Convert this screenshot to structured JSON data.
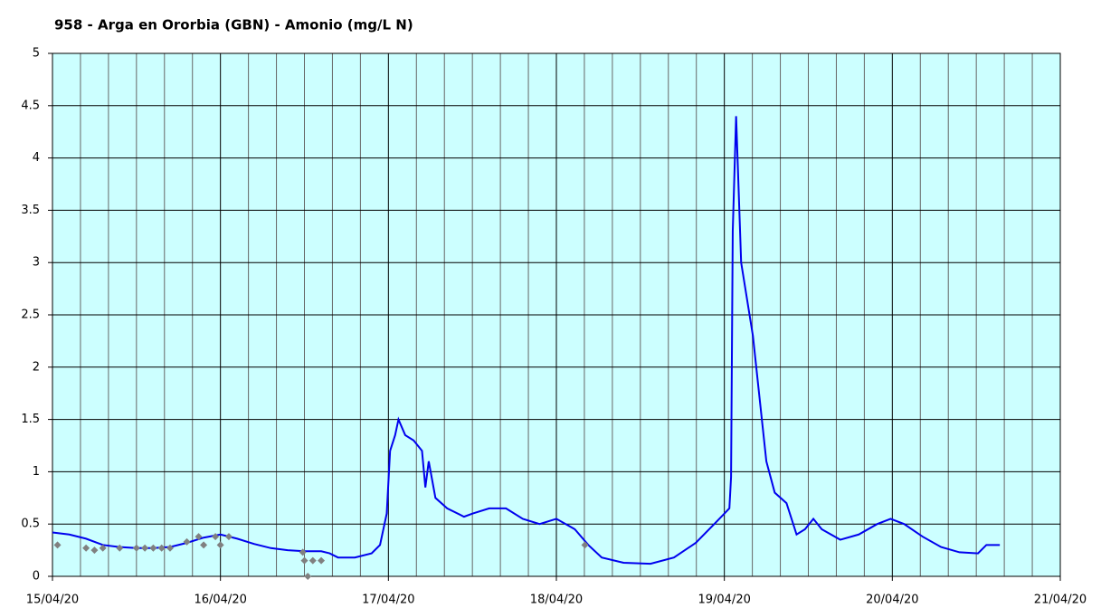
{
  "chart_data": {
    "type": "line",
    "title": "958 - Arga en Ororbia (GBN) - Amonio (mg/L N)",
    "xlim": [
      0,
      6
    ],
    "ylim": [
      0,
      5
    ],
    "xticks": [
      {
        "value": 0,
        "label": "15/04/20"
      },
      {
        "value": 1,
        "label": "16/04/20"
      },
      {
        "value": 2,
        "label": "17/04/20"
      },
      {
        "value": 3,
        "label": "18/04/20"
      },
      {
        "value": 4,
        "label": "19/04/20"
      },
      {
        "value": 5,
        "label": "20/04/20"
      },
      {
        "value": 6,
        "label": "21/04/20"
      }
    ],
    "yticks": [
      0,
      0.5,
      1,
      1.5,
      2,
      2.5,
      3,
      3.5,
      4,
      4.5,
      5
    ],
    "grid": true,
    "background": "#ccffff",
    "series": [
      {
        "color": "#0000ee",
        "kind": "line",
        "x": [
          0,
          0.1,
          0.2,
          0.3,
          0.4,
          0.5,
          0.6,
          0.7,
          0.8,
          0.9,
          1.0,
          1.1,
          1.2,
          1.3,
          1.4,
          1.5,
          1.6,
          1.65,
          1.7,
          1.8,
          1.9,
          1.95,
          1.99,
          2.01,
          2.04,
          2.06,
          2.1,
          2.15,
          2.2,
          2.22,
          2.24,
          2.28,
          2.35,
          2.45,
          2.5,
          2.6,
          2.7,
          2.8,
          2.9,
          3.0,
          3.11,
          3.19,
          3.27,
          3.4,
          3.56,
          3.7,
          3.83,
          3.94,
          4.0,
          4.03,
          4.04,
          4.05,
          4.07,
          4.1,
          4.13,
          4.17,
          4.21,
          4.25,
          4.3,
          4.37,
          4.43,
          4.48,
          4.53,
          4.58,
          4.69,
          4.8,
          4.91,
          4.99,
          5.07,
          5.18,
          5.29,
          5.4,
          5.51,
          5.56,
          5.64
        ],
        "values": [
          0.42,
          0.4,
          0.36,
          0.3,
          0.28,
          0.27,
          0.27,
          0.28,
          0.32,
          0.37,
          0.4,
          0.36,
          0.31,
          0.27,
          0.25,
          0.24,
          0.24,
          0.22,
          0.18,
          0.18,
          0.22,
          0.3,
          0.6,
          1.2,
          1.35,
          1.5,
          1.35,
          1.3,
          1.2,
          0.85,
          1.1,
          0.75,
          0.65,
          0.57,
          0.6,
          0.65,
          0.65,
          0.55,
          0.5,
          0.55,
          0.45,
          0.3,
          0.18,
          0.13,
          0.12,
          0.18,
          0.32,
          0.5,
          0.6,
          0.65,
          0.95,
          3.3,
          4.4,
          3.0,
          2.7,
          2.3,
          1.7,
          1.1,
          0.8,
          0.7,
          0.4,
          0.45,
          0.55,
          0.45,
          0.35,
          0.4,
          0.5,
          0.55,
          0.5,
          0.38,
          0.28,
          0.23,
          0.22,
          0.3,
          0.3
        ]
      },
      {
        "color": "#808080",
        "kind": "points",
        "x": [
          0.03,
          0.2,
          0.25,
          0.3,
          0.4,
          0.5,
          0.55,
          0.6,
          0.65,
          0.7,
          0.8,
          0.87,
          0.9,
          0.97,
          1.0,
          1.05,
          1.49,
          1.5,
          1.52,
          1.55,
          1.6,
          3.17
        ],
        "values": [
          0.3,
          0.27,
          0.25,
          0.27,
          0.27,
          0.27,
          0.27,
          0.27,
          0.27,
          0.27,
          0.33,
          0.38,
          0.3,
          0.38,
          0.3,
          0.38,
          0.23,
          0.15,
          0,
          0.15,
          0.15,
          0.3
        ]
      }
    ]
  }
}
